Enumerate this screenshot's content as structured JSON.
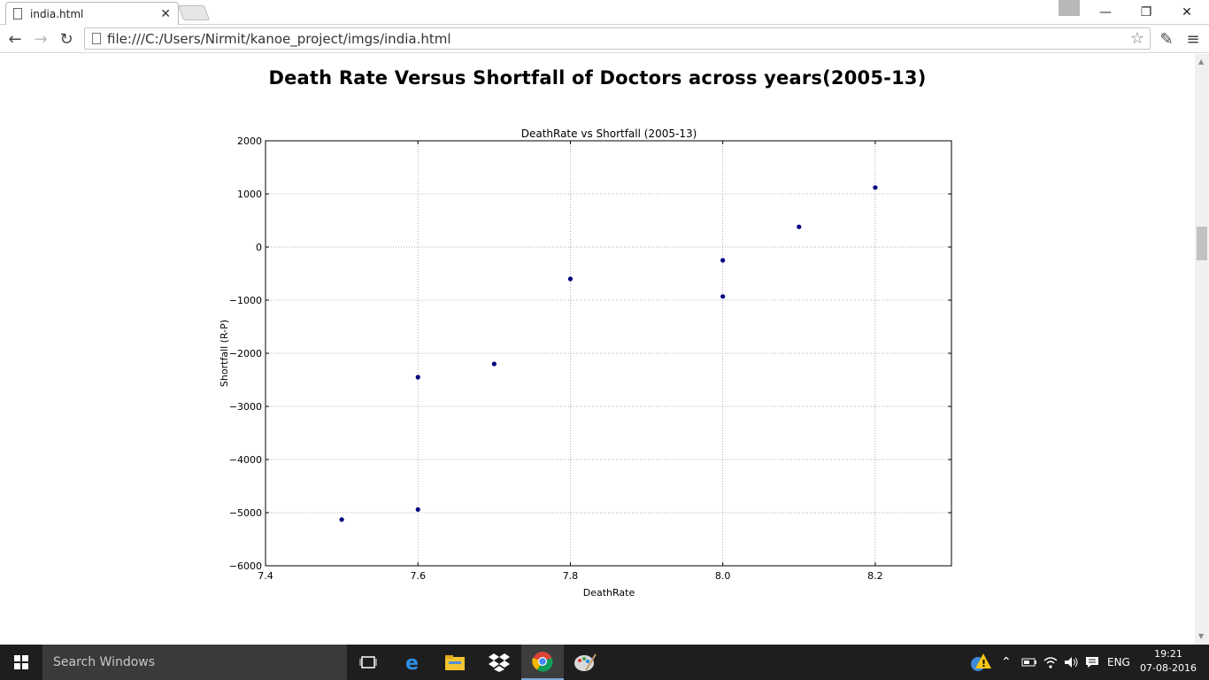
{
  "browser": {
    "tab_title": "india.html",
    "address": "file:///C:/Users/Nirmit/kanoe_project/imgs/india.html"
  },
  "page": {
    "heading": "Death Rate Versus Shortfall of Doctors across years(2005-13)"
  },
  "chart_data": {
    "type": "scatter",
    "title": "DeathRate vs Shortfall (2005-13)",
    "xlabel": "DeathRate",
    "ylabel": "Shortfall (R-P)",
    "xlim": [
      7.4,
      8.3
    ],
    "ylim": [
      -6000,
      2000
    ],
    "xticks": [
      7.4,
      7.6,
      7.8,
      8.0,
      8.2
    ],
    "xtick_labels": [
      "7.4",
      "7.6",
      "7.8",
      "8.0",
      "8.2"
    ],
    "yticks": [
      -6000,
      -5000,
      -4000,
      -3000,
      -2000,
      -1000,
      0,
      1000,
      2000
    ],
    "ytick_labels": [
      "−6000",
      "−5000",
      "−4000",
      "−3000",
      "−2000",
      "−1000",
      "0",
      "1000",
      "2000"
    ],
    "grid": true,
    "point_color": "#000080",
    "points": [
      {
        "x": 7.5,
        "y": -5130
      },
      {
        "x": 7.6,
        "y": -4940
      },
      {
        "x": 7.6,
        "y": -2450
      },
      {
        "x": 7.7,
        "y": -2200
      },
      {
        "x": 7.8,
        "y": -600
      },
      {
        "x": 8.0,
        "y": -250
      },
      {
        "x": 8.0,
        "y": -930
      },
      {
        "x": 8.1,
        "y": 380
      },
      {
        "x": 8.2,
        "y": 1120
      }
    ]
  },
  "taskbar": {
    "search_placeholder": "Search Windows",
    "language": "ENG",
    "time": "19:21",
    "date": "07-08-2016"
  }
}
